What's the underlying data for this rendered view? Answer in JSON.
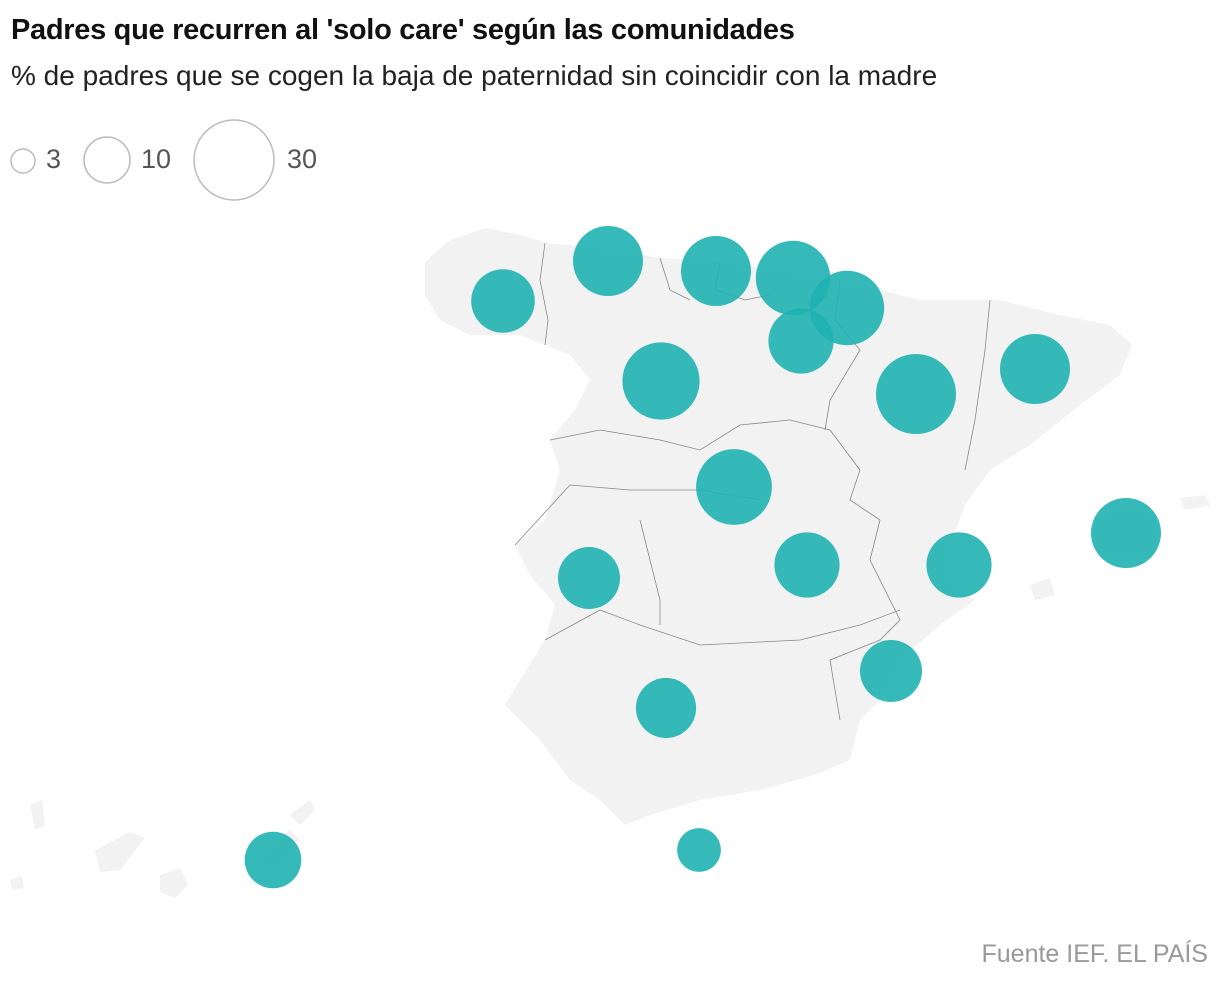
{
  "header": {
    "title": "Padres que recurren al 'solo care' según las comunidades",
    "subtitle": "% de padres que se cogen la baja de paternidad sin coincidir con la madre"
  },
  "legend": {
    "items": [
      {
        "value": 3,
        "label": "3"
      },
      {
        "value": 10,
        "label": "10"
      },
      {
        "value": 30,
        "label": "30"
      }
    ]
  },
  "colors": {
    "bubble": "#1fb3b1",
    "bubble_light": "#2cc6c6",
    "land": "#f2f2f2",
    "border": "#888888",
    "legend_stroke": "#bbbbbb"
  },
  "chart_data": {
    "type": "bubble-map",
    "title": "Padres que recurren al 'solo care' según las comunidades",
    "subtitle": "% de padres que se cogen la baja de paternidad sin coincidir con la madre",
    "unit": "%",
    "regions": [
      {
        "name": "Galicia",
        "value": 19
      },
      {
        "name": "Asturias",
        "value": 23
      },
      {
        "name": "Cantabria",
        "value": 23
      },
      {
        "name": "País Vasco",
        "value": 26
      },
      {
        "name": "Navarra",
        "value": 26
      },
      {
        "name": "La Rioja",
        "value": 20
      },
      {
        "name": "Castilla y León",
        "value": 28
      },
      {
        "name": "Aragón",
        "value": 30
      },
      {
        "name": "Cataluña",
        "value": 23
      },
      {
        "name": "Madrid",
        "value": 27
      },
      {
        "name": "Extremadura",
        "value": 18
      },
      {
        "name": "Castilla-La Mancha",
        "value": 20
      },
      {
        "name": "Comunidad Valenciana",
        "value": 20
      },
      {
        "name": "Baleares",
        "value": 23
      },
      {
        "name": "Murcia",
        "value": 18
      },
      {
        "name": "Andalucía",
        "value": 17
      },
      {
        "name": "Canarias",
        "value": 15
      },
      {
        "name": "Ceuta y Melilla",
        "value": 9
      }
    ]
  },
  "footer": {
    "source": "Fuente IEF. EL PAÍS"
  }
}
